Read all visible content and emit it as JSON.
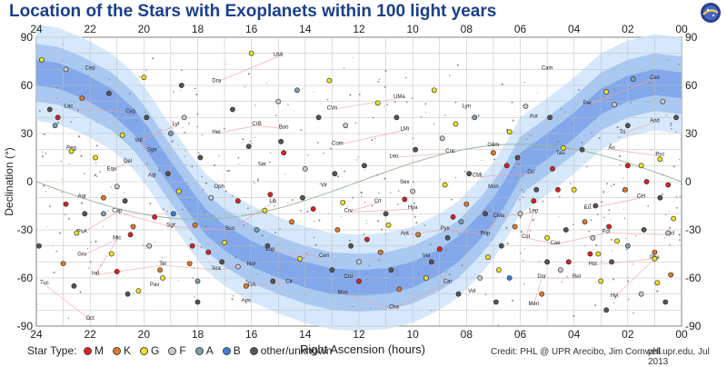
{
  "title": "Location of the Stars with Exoplanets within 100 light years",
  "logo": {
    "icon": "phl-logo-icon"
  },
  "chart_data": {
    "type": "scatter",
    "xlabel": "Right Ascension (hours)",
    "ylabel": "Declination (°)",
    "xlim": [
      24,
      0
    ],
    "ylim": [
      -90,
      90
    ],
    "x_ticks": [
      "24",
      "22",
      "20",
      "18",
      "16",
      "14",
      "12",
      "10",
      "08",
      "06",
      "04",
      "02",
      "00"
    ],
    "y_ticks": [
      "90",
      "60",
      "30",
      "0",
      "-30",
      "-60",
      "-90"
    ],
    "grid": true,
    "legend_position": "bottom",
    "constellation_labels": [
      {
        "name": "Cep",
        "ra": 22.0,
        "dec": 70
      },
      {
        "name": "Dra",
        "ra": 17.3,
        "dec": 62
      },
      {
        "name": "UMi",
        "ra": 15.0,
        "dec": 78
      },
      {
        "name": "Cam",
        "ra": 5.0,
        "dec": 70
      },
      {
        "name": "Cas",
        "ra": 1.0,
        "dec": 64
      },
      {
        "name": "Per",
        "ra": 3.5,
        "dec": 48
      },
      {
        "name": "UMa",
        "ra": 10.5,
        "dec": 52
      },
      {
        "name": "CVn",
        "ra": 13.0,
        "dec": 45
      },
      {
        "name": "Lyn",
        "ra": 8.0,
        "dec": 46
      },
      {
        "name": "Lac",
        "ra": 22.8,
        "dec": 46
      },
      {
        "name": "Cyg",
        "ra": 20.5,
        "dec": 43
      },
      {
        "name": "Boo",
        "ra": 14.8,
        "dec": 33
      },
      {
        "name": "CrB",
        "ra": 15.8,
        "dec": 35
      },
      {
        "name": "Her",
        "ra": 17.3,
        "dec": 30
      },
      {
        "name": "And",
        "ra": 1.0,
        "dec": 37
      },
      {
        "name": "Tri",
        "ra": 2.2,
        "dec": 30
      },
      {
        "name": "Aur",
        "ra": 5.5,
        "dec": 40
      },
      {
        "name": "Lyr",
        "ra": 18.8,
        "dec": 35
      },
      {
        "name": "Vul",
        "ra": 20.2,
        "dec": 25
      },
      {
        "name": "Sge",
        "ra": 19.7,
        "dec": 19
      },
      {
        "name": "Peg",
        "ra": 22.7,
        "dec": 20
      },
      {
        "name": "Com",
        "ra": 12.8,
        "dec": 23
      },
      {
        "name": "LMi",
        "ra": 10.3,
        "dec": 32
      },
      {
        "name": "Gem",
        "ra": 7.0,
        "dec": 22
      },
      {
        "name": "Ari",
        "ra": 2.6,
        "dec": 20
      },
      {
        "name": "Psc",
        "ra": 0.8,
        "dec": 16
      },
      {
        "name": "Del",
        "ra": 20.6,
        "dec": 12
      },
      {
        "name": "Equ",
        "ra": 21.2,
        "dec": 7
      },
      {
        "name": "Ser",
        "ra": 15.6,
        "dec": 10
      },
      {
        "name": "Leo",
        "ra": 10.7,
        "dec": 15
      },
      {
        "name": "Cnc",
        "ra": 8.6,
        "dec": 18
      },
      {
        "name": "Tau",
        "ra": 4.5,
        "dec": 17
      },
      {
        "name": "CMi",
        "ra": 7.6,
        "dec": 3
      },
      {
        "name": "Ori",
        "ra": 5.6,
        "dec": 5
      },
      {
        "name": "Aql",
        "ra": 19.7,
        "dec": 3
      },
      {
        "name": "Sex",
        "ra": 10.3,
        "dec": -1
      },
      {
        "name": "Vir",
        "ra": 13.3,
        "dec": -3
      },
      {
        "name": "Oph",
        "ra": 17.2,
        "dec": -4
      },
      {
        "name": "Mon",
        "ra": 7.0,
        "dec": -4
      },
      {
        "name": "Cet",
        "ra": 1.5,
        "dec": -10
      },
      {
        "name": "Eri",
        "ra": 3.5,
        "dec": -17
      },
      {
        "name": "Aqr",
        "ra": 22.3,
        "dec": -10
      },
      {
        "name": "Crt",
        "ra": 11.3,
        "dec": -13
      },
      {
        "name": "Crv",
        "ra": 12.4,
        "dec": -19
      },
      {
        "name": "Hya",
        "ra": 10.0,
        "dec": -17
      },
      {
        "name": "Lib",
        "ra": 15.2,
        "dec": -13
      },
      {
        "name": "Sco",
        "ra": 16.8,
        "dec": -30
      },
      {
        "name": "Sgr",
        "ra": 19.0,
        "dec": -28
      },
      {
        "name": "Cap",
        "ra": 21.0,
        "dec": -19
      },
      {
        "name": "PsA",
        "ra": 22.3,
        "dec": -32
      },
      {
        "name": "Lup",
        "ra": 15.3,
        "dec": -43
      },
      {
        "name": "Cen",
        "ra": 13.3,
        "dec": -47
      },
      {
        "name": "Ant",
        "ra": 10.3,
        "dec": -33
      },
      {
        "name": "Pyx",
        "ra": 8.8,
        "dec": -30
      },
      {
        "name": "Pup",
        "ra": 7.3,
        "dec": -33
      },
      {
        "name": "CMa",
        "ra": 6.8,
        "dec": -22
      },
      {
        "name": "Lep",
        "ra": 5.5,
        "dec": -19
      },
      {
        "name": "Col",
        "ra": 5.8,
        "dec": -35
      },
      {
        "name": "Cae",
        "ra": 4.7,
        "dec": -39
      },
      {
        "name": "For",
        "ra": 2.8,
        "dec": -32
      },
      {
        "name": "Scl",
        "ra": 0.4,
        "dec": -33
      },
      {
        "name": "Gru",
        "ra": 22.3,
        "dec": -46
      },
      {
        "name": "Mic",
        "ra": 21.0,
        "dec": -36
      },
      {
        "name": "Ind",
        "ra": 21.8,
        "dec": -58
      },
      {
        "name": "Tel",
        "ra": 19.3,
        "dec": -52
      },
      {
        "name": "Ara",
        "ra": 17.3,
        "dec": -55
      },
      {
        "name": "Nor",
        "ra": 16.0,
        "dec": -52
      },
      {
        "name": "Pav",
        "ra": 19.6,
        "dec": -65
      },
      {
        "name": "Aps",
        "ra": 16.2,
        "dec": -75
      },
      {
        "name": "Mus",
        "ra": 12.6,
        "dec": -70
      },
      {
        "name": "Cha",
        "ra": 10.7,
        "dec": -79
      },
      {
        "name": "Car",
        "ra": 8.7,
        "dec": -63
      },
      {
        "name": "Vel",
        "ra": 9.5,
        "dec": -47
      },
      {
        "name": "Hor",
        "ra": 3.3,
        "dec": -52
      },
      {
        "name": "Phe",
        "ra": 1.0,
        "dec": -48
      },
      {
        "name": "Hyi",
        "ra": 2.5,
        "dec": -72
      },
      {
        "name": "Men",
        "ra": 5.5,
        "dec": -77
      },
      {
        "name": "Dor",
        "ra": 5.2,
        "dec": -60
      },
      {
        "name": "Ret",
        "ra": 3.9,
        "dec": -60
      },
      {
        "name": "Tuc",
        "ra": 23.7,
        "dec": -64
      },
      {
        "name": "Oct",
        "ra": 22.0,
        "dec": -86
      },
      {
        "name": "Cir",
        "ra": 14.6,
        "dec": -63
      },
      {
        "name": "TrA",
        "ra": 16.0,
        "dec": -65
      },
      {
        "name": "Cru",
        "ra": 12.4,
        "dec": -60
      },
      {
        "name": "Vol",
        "ra": 7.8,
        "dec": -69
      }
    ],
    "series": [
      {
        "name": "M",
        "color": "#e02020",
        "points": [
          [
            23.2,
            40
          ],
          [
            21.0,
            -56
          ],
          [
            20.5,
            -33
          ],
          [
            17.6,
            -44
          ],
          [
            16.5,
            -12
          ],
          [
            15.3,
            -8
          ],
          [
            13.7,
            -17
          ],
          [
            11.7,
            -36
          ],
          [
            10.3,
            -11
          ],
          [
            9.0,
            -42
          ],
          [
            6.5,
            10
          ],
          [
            4.8,
            8
          ],
          [
            4.6,
            -5
          ],
          [
            4.2,
            -50
          ],
          [
            3.4,
            -45
          ],
          [
            2.7,
            -28
          ],
          [
            2.0,
            10
          ],
          [
            0.5,
            -2
          ],
          [
            22.9,
            -14
          ],
          [
            19.6,
            -22
          ],
          [
            1.3,
            0
          ],
          [
            5.5,
            -12
          ],
          [
            12.0,
            -62
          ],
          [
            14.8,
            18
          ],
          [
            8.5,
            -22
          ],
          [
            18.2,
            -40
          ]
        ]
      },
      {
        "name": "K",
        "color": "#e0782a",
        "points": [
          [
            22.3,
            52
          ],
          [
            21.5,
            -10
          ],
          [
            19.4,
            -55
          ],
          [
            18.1,
            -27
          ],
          [
            16.2,
            -65
          ],
          [
            14.5,
            -25
          ],
          [
            11.2,
            -44
          ],
          [
            10.5,
            -67
          ],
          [
            9.8,
            -33
          ],
          [
            8.0,
            -14
          ],
          [
            6.2,
            -28
          ],
          [
            5.2,
            -70
          ],
          [
            3.6,
            -25
          ],
          [
            2.1,
            -5
          ],
          [
            1.0,
            -44
          ],
          [
            0.4,
            -58
          ],
          [
            23.0,
            -51
          ],
          [
            20.4,
            -28
          ],
          [
            18.3,
            -51
          ],
          [
            12.8,
            -30
          ],
          [
            7.0,
            18
          ]
        ]
      },
      {
        "name": "G",
        "color": "#f0e020",
        "points": [
          [
            23.8,
            76
          ],
          [
            21.8,
            15
          ],
          [
            20.0,
            65
          ],
          [
            16.0,
            80
          ],
          [
            13.1,
            63
          ],
          [
            11.3,
            49
          ],
          [
            9.2,
            57
          ],
          [
            8.4,
            36
          ],
          [
            6.4,
            31
          ],
          [
            4.4,
            21
          ],
          [
            2.8,
            56
          ],
          [
            1.5,
            10
          ],
          [
            0.8,
            14
          ],
          [
            22.7,
            19
          ],
          [
            20.8,
            29
          ],
          [
            19.3,
            -60
          ],
          [
            18.7,
            -6
          ],
          [
            15.5,
            -18
          ],
          [
            12.6,
            -13
          ],
          [
            10.9,
            -27
          ],
          [
            8.8,
            -2
          ],
          [
            7.2,
            -47
          ],
          [
            5.0,
            -35
          ],
          [
            4.0,
            -5
          ],
          [
            3.1,
            -45
          ],
          [
            2.4,
            -37
          ],
          [
            1.0,
            -48
          ],
          [
            0.3,
            -23
          ],
          [
            21.2,
            -45
          ],
          [
            17.0,
            -38
          ],
          [
            14.2,
            -48
          ],
          [
            9.5,
            -60
          ],
          [
            6.8,
            -55
          ],
          [
            3.0,
            -62
          ],
          [
            0.9,
            -63
          ],
          [
            22.5,
            -32
          ],
          [
            20.2,
            -68
          ]
        ]
      },
      {
        "name": "F",
        "color": "#c8c8c8",
        "points": [
          [
            22.9,
            70
          ],
          [
            18.5,
            40
          ],
          [
            15.0,
            50
          ],
          [
            12.5,
            35
          ],
          [
            8.9,
            27
          ],
          [
            5.8,
            47
          ],
          [
            2.5,
            48
          ],
          [
            0.7,
            50
          ],
          [
            21.0,
            -3
          ],
          [
            17.5,
            -10
          ],
          [
            14.0,
            8
          ],
          [
            10.0,
            -6
          ],
          [
            6.0,
            -20
          ],
          [
            3.3,
            -35
          ],
          [
            0.5,
            -32
          ],
          [
            19.8,
            -40
          ],
          [
            16.5,
            -53
          ],
          [
            12.0,
            -50
          ],
          [
            7.5,
            -60
          ],
          [
            4.5,
            -55
          ],
          [
            1.5,
            -70
          ]
        ]
      },
      {
        "name": "A",
        "color": "#7aa0b0",
        "points": [
          [
            23.3,
            35
          ],
          [
            19.0,
            30
          ],
          [
            14.3,
            57
          ],
          [
            7.7,
            40
          ],
          [
            1.8,
            64
          ],
          [
            21.5,
            -20
          ],
          [
            15.8,
            -30
          ],
          [
            8.2,
            -25
          ],
          [
            2.0,
            -40
          ],
          [
            18.0,
            -62
          ]
        ]
      },
      {
        "name": "B",
        "color": "#3a7fd8",
        "points": [
          [
            18.9,
            -20
          ],
          [
            6.4,
            -60
          ]
        ]
      },
      {
        "name": "other/unknown",
        "color": "#555555",
        "points": [
          [
            23.5,
            45
          ],
          [
            22.2,
            -20
          ],
          [
            21.3,
            55
          ],
          [
            20.7,
            -12
          ],
          [
            19.9,
            40
          ],
          [
            19.1,
            5
          ],
          [
            18.6,
            60
          ],
          [
            17.9,
            15
          ],
          [
            17.1,
            -50
          ],
          [
            16.7,
            45
          ],
          [
            16.1,
            22
          ],
          [
            15.4,
            -40
          ],
          [
            14.9,
            25
          ],
          [
            14.1,
            -10
          ],
          [
            13.5,
            40
          ],
          [
            12.9,
            5
          ],
          [
            12.3,
            -40
          ],
          [
            11.8,
            10
          ],
          [
            11.0,
            -20
          ],
          [
            10.6,
            40
          ],
          [
            9.9,
            20
          ],
          [
            9.3,
            -50
          ],
          [
            8.7,
            -35
          ],
          [
            7.9,
            5
          ],
          [
            7.3,
            -20
          ],
          [
            6.7,
            -40
          ],
          [
            6.1,
            15
          ],
          [
            5.4,
            -5
          ],
          [
            4.9,
            40
          ],
          [
            4.3,
            -30
          ],
          [
            3.7,
            20
          ],
          [
            3.2,
            -15
          ],
          [
            2.6,
            -50
          ],
          [
            2.0,
            35
          ],
          [
            1.4,
            -30
          ],
          [
            0.8,
            -10
          ],
          [
            0.2,
            40
          ],
          [
            23.9,
            -40
          ],
          [
            22.6,
            -65
          ],
          [
            20.6,
            -70
          ],
          [
            18.0,
            -75
          ],
          [
            15.2,
            -62
          ],
          [
            13.0,
            -55
          ],
          [
            10.8,
            -55
          ],
          [
            8.3,
            -70
          ],
          [
            6.9,
            -75
          ],
          [
            5.0,
            -50
          ],
          [
            2.8,
            -80
          ],
          [
            0.6,
            -75
          ]
        ]
      }
    ]
  },
  "bottom_bar": {
    "star_type_label": "Star Type:",
    "legend": [
      {
        "label": "M",
        "color": "#e02020"
      },
      {
        "label": "K",
        "color": "#e0782a"
      },
      {
        "label": "G",
        "color": "#f0e020"
      },
      {
        "label": "F",
        "color": "#c8c8c8"
      },
      {
        "label": "A",
        "color": "#7aa0b0"
      },
      {
        "label": "B",
        "color": "#3a7fd8"
      },
      {
        "label": "other/unknown",
        "color": "#555555"
      }
    ],
    "credit": "Credit: PHL @ UPR Arecibo, Jim Cornwell",
    "site": "phl.upr.edu, Jul 2013"
  },
  "colors": {
    "milky_way_outer": "#d6e8fb",
    "milky_way_mid": "#a9c9f3",
    "milky_way_inner": "#7da4ea",
    "ecliptic": "#9ab89a",
    "constellation_lines": "#f0a0a0",
    "grid": "#bcbcbc"
  }
}
